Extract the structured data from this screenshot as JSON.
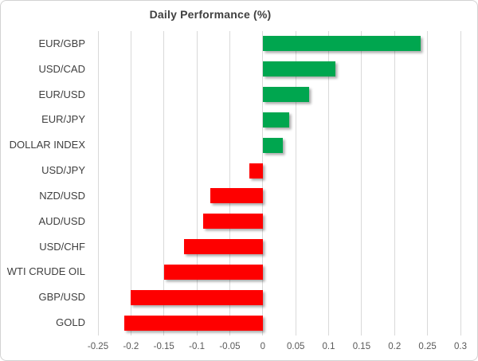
{
  "chart_data": {
    "type": "bar",
    "orientation": "horizontal",
    "title": "Daily Performance (%)",
    "categories": [
      "EUR/GBP",
      "USD/CAD",
      "EUR/USD",
      "EUR/JPY",
      "DOLLAR INDEX",
      "USD/JPY",
      "NZD/USD",
      "AUD/USD",
      "USD/CHF",
      "WTI CRUDE OIL",
      "GBP/USD",
      "GOLD"
    ],
    "values": [
      0.24,
      0.11,
      0.07,
      0.04,
      0.03,
      -0.02,
      -0.08,
      -0.09,
      -0.12,
      -0.15,
      -0.2,
      -0.21
    ],
    "xlim": [
      -0.25,
      0.3
    ],
    "xticks": [
      -0.25,
      -0.2,
      -0.15,
      -0.1,
      -0.05,
      0,
      0.05,
      0.1,
      0.15,
      0.2,
      0.25,
      0.3
    ],
    "xtick_labels": [
      "-0.25",
      "-0.2",
      "-0.15",
      "-0.1",
      "-0.05",
      "0",
      "0.05",
      "0.1",
      "0.15",
      "0.2",
      "0.25",
      "0.3"
    ],
    "xlabel": "",
    "ylabel": "",
    "grid": true,
    "legend": "none",
    "positive_color": "#00a64f",
    "negative_color": "#fe0000",
    "gridline_color": "#d9d9d9"
  }
}
